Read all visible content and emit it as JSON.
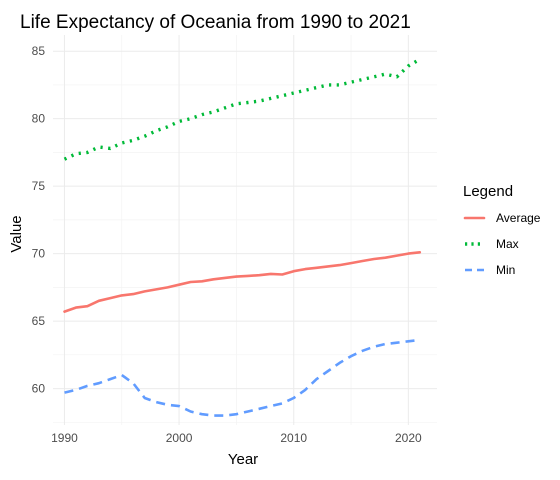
{
  "chart_data": {
    "type": "line",
    "title": "Life Expectancy of Oceania from 1990 to 2021",
    "xlabel": "Year",
    "ylabel": "Value",
    "xlim": [
      1989,
      2022.5
    ],
    "ylim": [
      57.3,
      86.2
    ],
    "x_ticks": [
      1990,
      2000,
      2010,
      2020
    ],
    "y_ticks": [
      60,
      65,
      70,
      75,
      80,
      85
    ],
    "grid": true,
    "legend": {
      "title": "Legend",
      "position": "right"
    },
    "x": [
      1990,
      1991,
      1992,
      1993,
      1994,
      1995,
      1996,
      1997,
      1998,
      1999,
      2000,
      2001,
      2002,
      2003,
      2004,
      2005,
      2006,
      2007,
      2008,
      2009,
      2010,
      2011,
      2012,
      2013,
      2014,
      2015,
      2016,
      2017,
      2018,
      2019,
      2020,
      2021
    ],
    "series": [
      {
        "name": "Average",
        "color": "#f8766d",
        "dash": "solid",
        "values": [
          65.7,
          66.0,
          66.1,
          66.5,
          66.7,
          66.9,
          67.0,
          67.2,
          67.35,
          67.5,
          67.7,
          67.9,
          67.95,
          68.1,
          68.2,
          68.3,
          68.35,
          68.4,
          68.5,
          68.45,
          68.7,
          68.85,
          68.95,
          69.05,
          69.15,
          69.3,
          69.45,
          69.6,
          69.7,
          69.85,
          70.0,
          70.1
        ]
      },
      {
        "name": "Max",
        "color": "#00ba38",
        "dash": "dotted",
        "values": [
          77.0,
          77.4,
          77.5,
          77.9,
          77.8,
          78.2,
          78.4,
          78.7,
          79.1,
          79.4,
          79.8,
          80.0,
          80.3,
          80.5,
          80.8,
          81.1,
          81.2,
          81.3,
          81.5,
          81.7,
          81.9,
          82.1,
          82.3,
          82.5,
          82.5,
          82.7,
          82.9,
          83.1,
          83.3,
          83.1,
          83.9,
          84.4
        ]
      },
      {
        "name": "Min",
        "color": "#619cff",
        "dash": "dashed",
        "values": [
          59.7,
          59.9,
          60.2,
          60.4,
          60.7,
          61.0,
          60.4,
          59.3,
          59.0,
          58.8,
          58.7,
          58.3,
          58.1,
          58.0,
          58.0,
          58.1,
          58.3,
          58.5,
          58.7,
          58.9,
          59.3,
          59.9,
          60.7,
          61.3,
          61.9,
          62.4,
          62.8,
          63.1,
          63.3,
          63.4,
          63.5,
          63.6
        ]
      }
    ]
  }
}
